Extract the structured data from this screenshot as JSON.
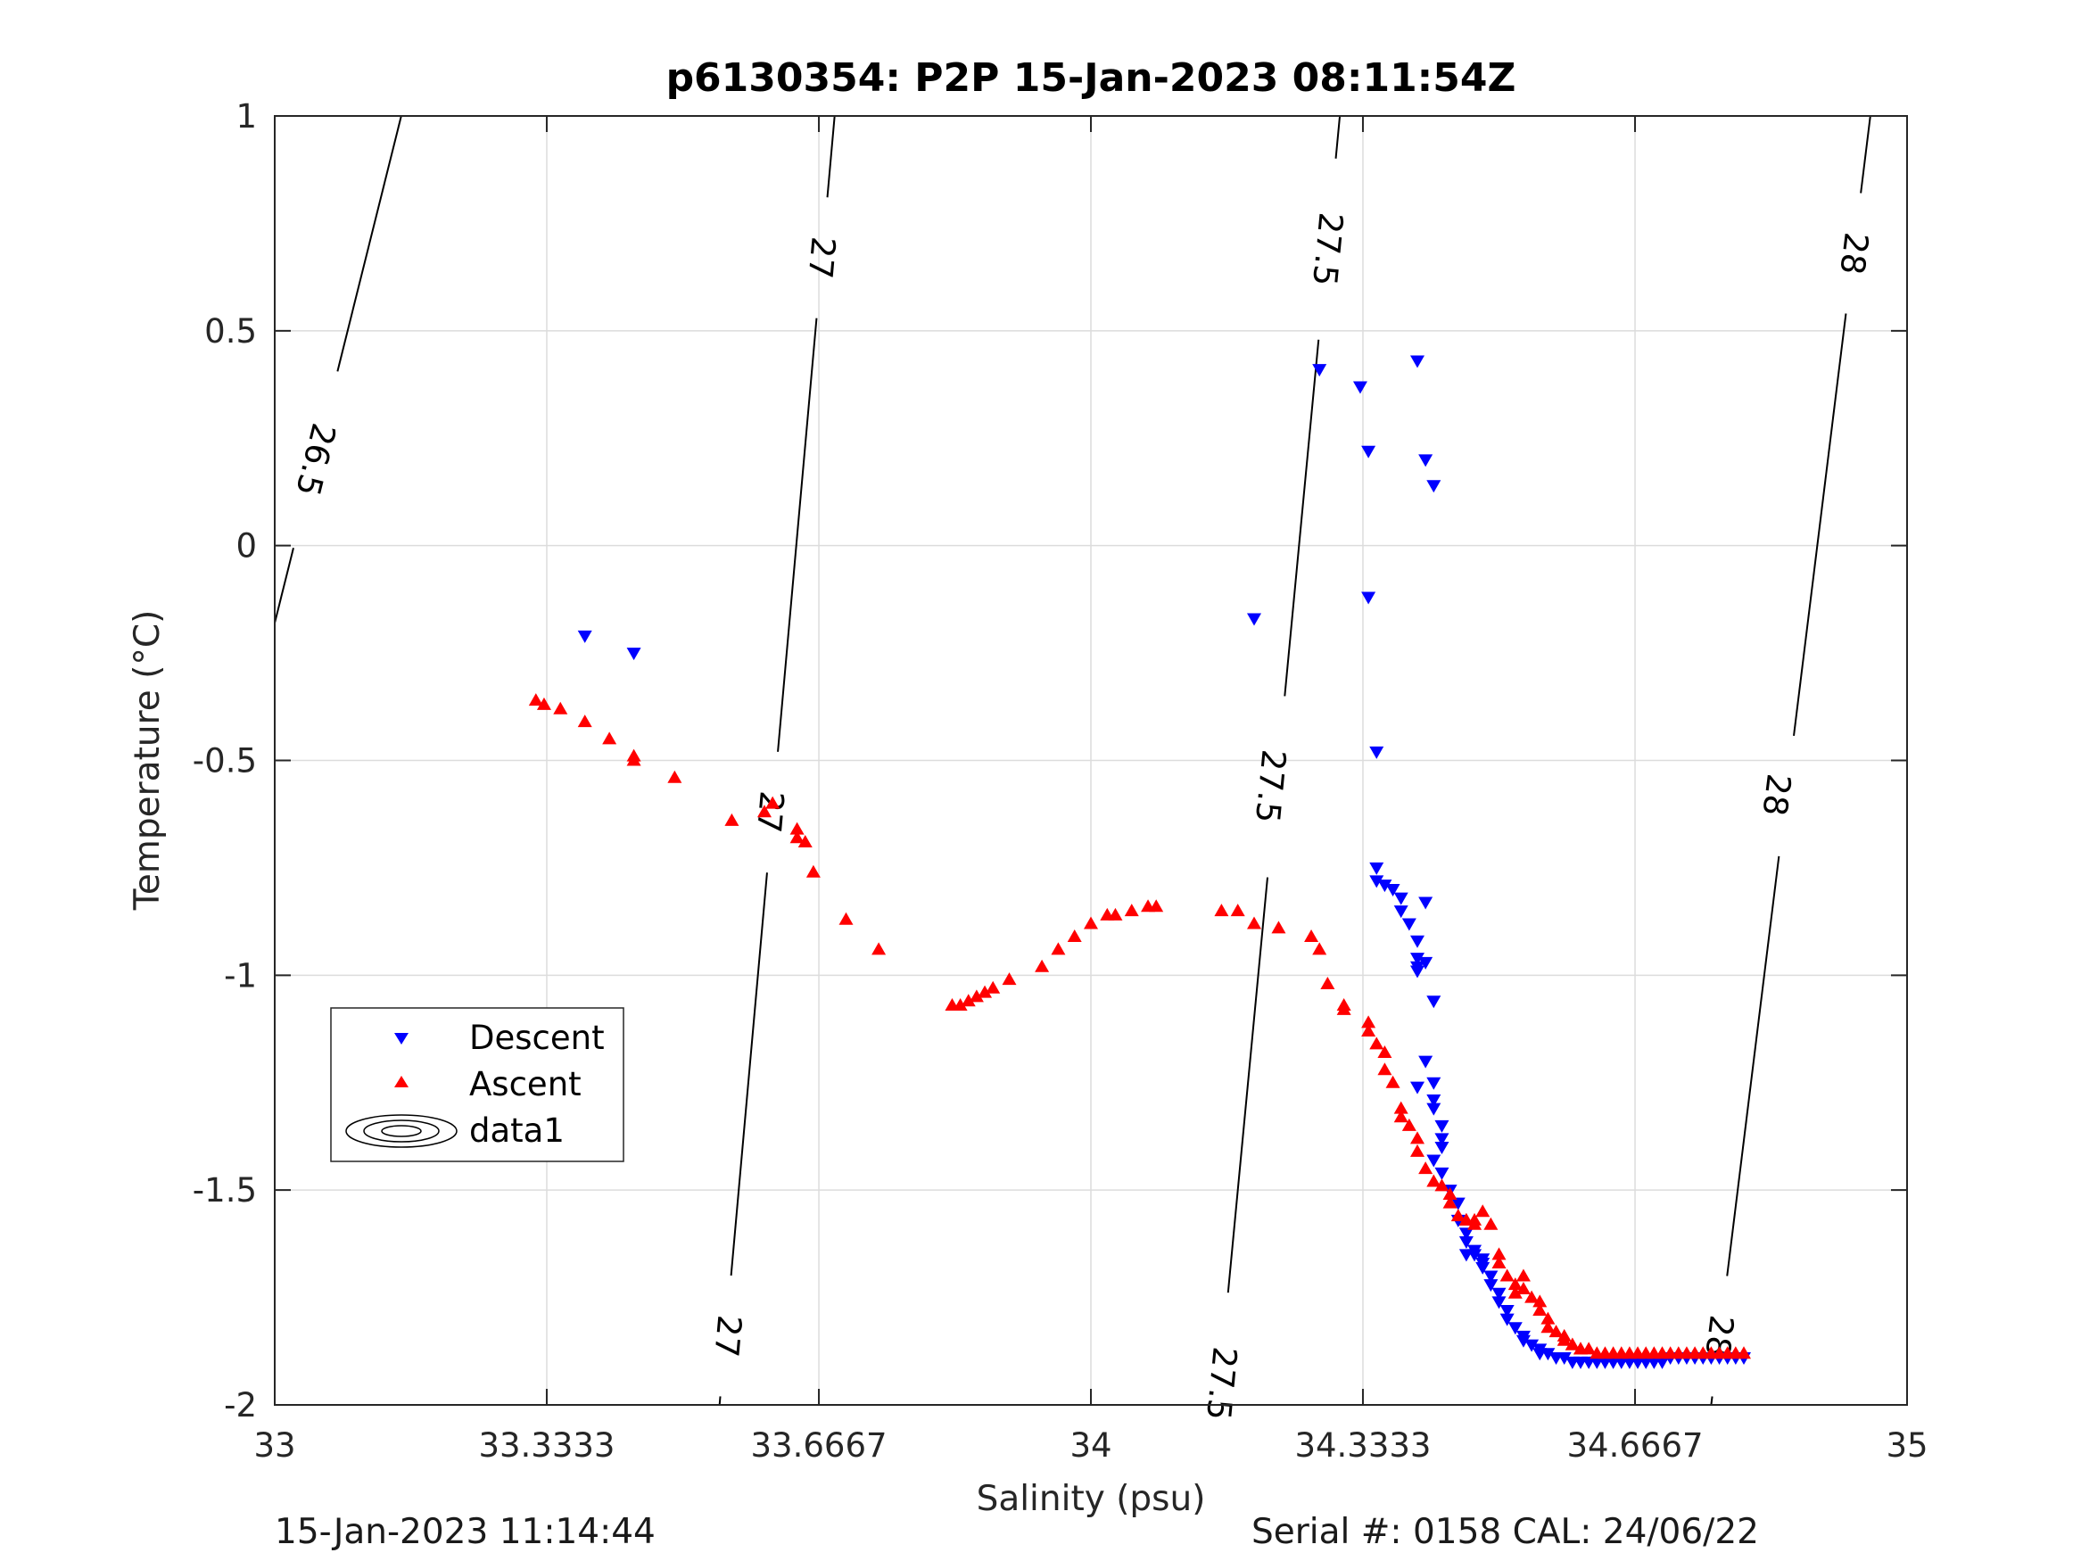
{
  "chart_data": {
    "type": "scatter",
    "title": "p6130354: P2P 15-Jan-2023 08:11:54Z",
    "xlabel": "Salinity (psu)",
    "ylabel": "Temperature (°C)",
    "xlim": [
      33,
      35
    ],
    "ylim": [
      -2,
      1
    ],
    "x_ticks": [
      "33",
      "33.3333",
      "33.6667",
      "34",
      "34.3333",
      "34.6667",
      "35"
    ],
    "x_tick_values": [
      33,
      33.3333,
      33.6667,
      34,
      34.3333,
      34.6667,
      35
    ],
    "y_ticks": [
      "1",
      "0.5",
      "0",
      "-0.5",
      "-1",
      "-1.5",
      "-2"
    ],
    "y_tick_values": [
      1,
      0.5,
      0,
      -0.5,
      -1,
      -1.5,
      -2
    ],
    "grid": true,
    "legend_position": "bottom-left",
    "series": [
      {
        "name": "Descent",
        "marker": "down-triangle",
        "color": "#0000ff",
        "x": [
          33.38,
          33.44,
          34.2,
          34.28,
          34.33,
          34.4,
          34.34,
          34.41,
          34.42,
          34.34,
          34.35,
          34.35,
          34.35,
          34.36,
          34.37,
          34.38,
          34.38,
          34.39,
          34.4,
          34.4,
          34.4,
          34.4,
          34.41,
          34.41,
          34.42,
          34.41,
          34.42,
          34.4,
          34.42,
          34.42,
          34.43,
          34.43,
          34.43,
          34.42,
          34.43,
          34.44,
          34.45,
          34.45,
          34.46,
          34.46,
          34.47,
          34.46,
          34.47,
          34.48,
          34.48,
          34.48,
          34.49,
          34.49,
          34.5,
          34.5,
          34.51,
          34.51,
          34.52,
          34.53,
          34.53,
          34.54,
          34.55,
          34.55,
          34.56,
          34.57,
          34.58,
          34.59,
          34.6,
          34.61,
          34.62,
          34.63,
          34.64,
          34.65,
          34.66,
          34.67,
          34.68,
          34.69,
          34.7,
          34.71,
          34.72,
          34.73,
          34.74,
          34.75,
          34.76,
          34.77,
          34.78,
          34.79,
          34.8
        ],
        "y": [
          -0.21,
          -0.25,
          -0.17,
          0.41,
          0.37,
          0.43,
          0.22,
          0.2,
          0.14,
          -0.12,
          -0.48,
          -0.75,
          -0.78,
          -0.79,
          -0.8,
          -0.82,
          -0.85,
          -0.88,
          -0.92,
          -0.96,
          -0.98,
          -0.99,
          -0.97,
          -0.83,
          -1.06,
          -1.2,
          -1.25,
          -1.26,
          -1.29,
          -1.31,
          -1.35,
          -1.38,
          -1.4,
          -1.43,
          -1.46,
          -1.5,
          -1.53,
          -1.57,
          -1.6,
          -1.62,
          -1.64,
          -1.65,
          -1.65,
          -1.66,
          -1.67,
          -1.68,
          -1.7,
          -1.72,
          -1.74,
          -1.76,
          -1.78,
          -1.8,
          -1.82,
          -1.84,
          -1.85,
          -1.86,
          -1.87,
          -1.88,
          -1.88,
          -1.89,
          -1.89,
          -1.9,
          -1.9,
          -1.9,
          -1.9,
          -1.9,
          -1.9,
          -1.9,
          -1.9,
          -1.9,
          -1.9,
          -1.9,
          -1.9,
          -1.89,
          -1.89,
          -1.89,
          -1.89,
          -1.89,
          -1.89,
          -1.89,
          -1.89,
          -1.89,
          -1.89
        ]
      },
      {
        "name": "Ascent",
        "marker": "up-triangle",
        "color": "#ff0000",
        "x": [
          33.32,
          33.33,
          33.35,
          33.38,
          33.41,
          33.44,
          33.44,
          33.49,
          33.56,
          33.6,
          33.61,
          33.64,
          33.64,
          33.65,
          33.66,
          33.7,
          33.74,
          33.83,
          33.84,
          33.85,
          33.86,
          33.87,
          33.88,
          33.9,
          33.94,
          33.96,
          33.98,
          34.0,
          34.02,
          34.03,
          34.05,
          34.07,
          34.08,
          34.16,
          34.18,
          34.2,
          34.23,
          34.27,
          34.28,
          34.29,
          34.31,
          34.31,
          34.34,
          34.34,
          34.35,
          34.36,
          34.36,
          34.37,
          34.38,
          34.38,
          34.39,
          34.4,
          34.4,
          34.41,
          34.42,
          34.43,
          34.44,
          34.44,
          34.45,
          34.46,
          34.46,
          34.47,
          34.47,
          34.48,
          34.49,
          34.5,
          34.5,
          34.51,
          34.52,
          34.52,
          34.53,
          34.53,
          34.54,
          34.55,
          34.55,
          34.56,
          34.56,
          34.57,
          34.58,
          34.58,
          34.59,
          34.59,
          34.6,
          34.6,
          34.61,
          34.62,
          34.63,
          34.64,
          34.65,
          34.66,
          34.67,
          34.68,
          34.69,
          34.7,
          34.71,
          34.72,
          34.73,
          34.74,
          34.75,
          34.76,
          34.77,
          34.78,
          34.79,
          34.8
        ],
        "y": [
          -0.36,
          -0.37,
          -0.38,
          -0.41,
          -0.45,
          -0.49,
          -0.5,
          -0.54,
          -0.64,
          -0.62,
          -0.6,
          -0.66,
          -0.68,
          -0.69,
          -0.76,
          -0.87,
          -0.94,
          -1.07,
          -1.07,
          -1.06,
          -1.05,
          -1.04,
          -1.03,
          -1.01,
          -0.98,
          -0.94,
          -0.91,
          -0.88,
          -0.86,
          -0.86,
          -0.85,
          -0.84,
          -0.84,
          -0.85,
          -0.85,
          -0.88,
          -0.89,
          -0.91,
          -0.94,
          -1.02,
          -1.07,
          -1.08,
          -1.11,
          -1.13,
          -1.16,
          -1.18,
          -1.22,
          -1.25,
          -1.31,
          -1.33,
          -1.35,
          -1.38,
          -1.41,
          -1.45,
          -1.48,
          -1.49,
          -1.51,
          -1.53,
          -1.56,
          -1.57,
          -1.57,
          -1.58,
          -1.57,
          -1.55,
          -1.58,
          -1.65,
          -1.67,
          -1.7,
          -1.72,
          -1.74,
          -1.73,
          -1.7,
          -1.75,
          -1.76,
          -1.78,
          -1.8,
          -1.82,
          -1.83,
          -1.84,
          -1.85,
          -1.86,
          -1.86,
          -1.87,
          -1.87,
          -1.87,
          -1.88,
          -1.88,
          -1.88,
          -1.88,
          -1.88,
          -1.88,
          -1.88,
          -1.88,
          -1.88,
          -1.88,
          -1.88,
          -1.88,
          -1.88,
          -1.88,
          -1.88,
          -1.88,
          -1.88,
          -1.88,
          -1.88
        ]
      },
      {
        "name": "data1",
        "marker": "contour"
      }
    ],
    "contours": [
      {
        "label": "26.5",
        "color": "#000000",
        "points": [
          [
            33.155,
            1.0
          ],
          [
            33.0,
            -0.18
          ]
        ],
        "label_positions": [
          [
            33.05,
            0.2
          ]
        ]
      },
      {
        "label": "27",
        "color": "#000000",
        "points": [
          [
            33.686,
            1.0
          ],
          [
            33.545,
            -2.0
          ]
        ],
        "label_positions": [
          [
            33.67,
            0.67
          ],
          [
            33.607,
            -0.62
          ],
          [
            33.555,
            -1.84
          ]
        ]
      },
      {
        "label": "27.5",
        "color": "#000000",
        "points": [
          [
            34.305,
            1.0
          ],
          [
            34.155,
            -2.0
          ]
        ],
        "label_positions": [
          [
            34.29,
            0.69
          ],
          [
            34.22,
            -0.56
          ],
          [
            34.16,
            -1.95
          ]
        ]
      },
      {
        "label": "28",
        "color": "#000000",
        "points": [
          [
            34.955,
            1.0
          ],
          [
            34.76,
            -2.0
          ]
        ],
        "label_positions": [
          [
            34.935,
            0.68
          ],
          [
            34.84,
            -0.58
          ],
          [
            34.77,
            -1.84
          ]
        ]
      }
    ]
  },
  "footer": {
    "left": "15-Jan-2023 11:14:44",
    "right": "Serial #: 0158  CAL: 24/06/22"
  }
}
